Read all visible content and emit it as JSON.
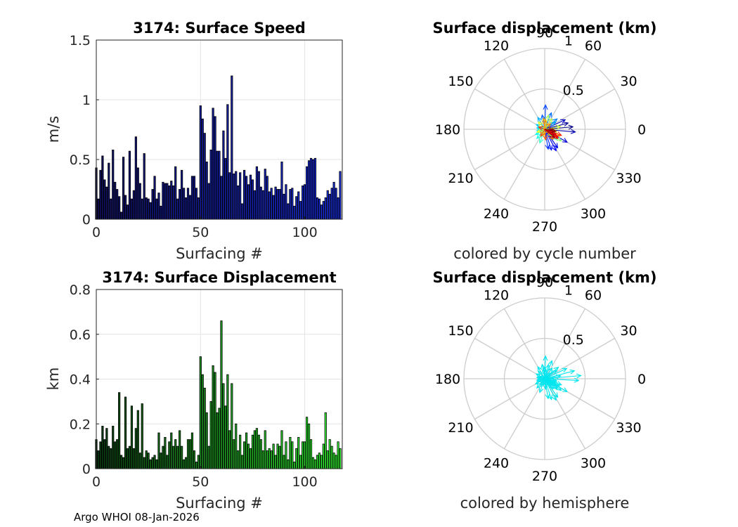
{
  "footer": "Argo WHOI 08-Jan-2026",
  "chart_data": [
    {
      "id": "speed",
      "type": "bar",
      "title": "3174: Surface Speed",
      "xlabel": "Surfacing #",
      "ylabel": "m/s",
      "xlim": [
        0,
        118
      ],
      "ylim": [
        0,
        1.5
      ],
      "xticks": [
        0,
        50,
        100
      ],
      "xtick_labels": [
        "0",
        "50",
        "100"
      ],
      "yticks": [
        0,
        0.5,
        1,
        1.5
      ],
      "ytick_labels": [
        "0",
        "0.5",
        "1",
        "1.5"
      ],
      "grid": true,
      "bar_color_start": "#101060",
      "bar_color_end": "#1a2ee6",
      "values": [
        0.43,
        0.17,
        0.41,
        0.53,
        0.33,
        0.27,
        0.47,
        0.17,
        0.58,
        0.31,
        0.25,
        0.19,
        0.06,
        0.52,
        0.2,
        0.12,
        0.57,
        0.17,
        0.24,
        0.69,
        0.43,
        0.3,
        0.17,
        0.55,
        0.18,
        0.17,
        0.14,
        0.25,
        0.36,
        0.17,
        0.22,
        0.11,
        0.31,
        0.3,
        0.3,
        0.28,
        0.32,
        0.28,
        0.44,
        0.17,
        0.25,
        0.41,
        0.26,
        0.18,
        0.26,
        0.2,
        0.36,
        0.36,
        0.26,
        0.18,
        0.95,
        0.84,
        0.72,
        0.48,
        0.3,
        0.58,
        0.93,
        0.86,
        0.57,
        0.57,
        0.36,
        0.74,
        0.51,
        0.96,
        0.39,
        1.2,
        0.38,
        0.4,
        0.28,
        0.39,
        0.13,
        0.41,
        0.36,
        0.29,
        0.37,
        0.33,
        0.24,
        0.44,
        0.4,
        0.27,
        0.24,
        0.42,
        0.36,
        0.23,
        0.26,
        0.2,
        0.27,
        0.25,
        0.25,
        0.48,
        0.21,
        0.29,
        0.13,
        0.25,
        0.26,
        0.11,
        0.19,
        0.23,
        0.15,
        0.28,
        0.29,
        0.44,
        0.49,
        0.51,
        0.5,
        0.51,
        0.18,
        0.17,
        0.12,
        0.15,
        0.18,
        0.24,
        0.21,
        0.26,
        0.31,
        0.26,
        0.18,
        0.4
      ],
      "caption": ""
    },
    {
      "id": "displacement",
      "type": "bar",
      "title": "3174: Surface Displacement",
      "xlabel": "Surfacing #",
      "ylabel": "km",
      "xlim": [
        0,
        118
      ],
      "ylim": [
        0,
        0.8
      ],
      "xticks": [
        0,
        50,
        100
      ],
      "xtick_labels": [
        "0",
        "50",
        "100"
      ],
      "yticks": [
        0,
        0.2,
        0.4,
        0.6,
        0.8
      ],
      "ytick_labels": [
        "0",
        "0.2",
        "0.4",
        "0.6",
        "0.8"
      ],
      "grid": true,
      "bar_color_start": "#0b3a12",
      "bar_color_end": "#33ff33",
      "values": [
        0.13,
        0.08,
        0.12,
        0.19,
        0.13,
        0.18,
        0.1,
        0.09,
        0.19,
        0.12,
        0.13,
        0.34,
        0.06,
        0.05,
        0.32,
        0.09,
        0.1,
        0.28,
        0.09,
        0.18,
        0.26,
        0.07,
        0.29,
        0.05,
        0.08,
        0.07,
        0.04,
        0.05,
        0.06,
        0.04,
        0.16,
        0.07,
        0.1,
        0.14,
        0.06,
        0.12,
        0.16,
        0.1,
        0.13,
        0.1,
        0.17,
        0.1,
        0.04,
        0.05,
        0.13,
        0.13,
        0.16,
        0.08,
        0.03,
        0.06,
        0.5,
        0.42,
        0.36,
        0.25,
        0.1,
        0.3,
        0.46,
        0.43,
        0.25,
        0.27,
        0.66,
        0.38,
        0.28,
        0.42,
        0.17,
        0.38,
        0.13,
        0.2,
        0.08,
        0.15,
        0.06,
        0.12,
        0.16,
        0.11,
        0.09,
        0.15,
        0.17,
        0.18,
        0.15,
        0.13,
        0.08,
        0.17,
        0.08,
        0.09,
        0.08,
        0.11,
        0.06,
        0.11,
        0.1,
        0.17,
        0.06,
        0.12,
        0.04,
        0.14,
        0.12,
        0.03,
        0.09,
        0.14,
        0.06,
        0.12,
        0.12,
        0.23,
        0.2,
        0.13,
        0.05,
        0.04,
        0.06,
        0.07,
        0.06,
        0.11,
        0.25,
        0.08,
        0.13,
        0.1,
        0.07,
        0.06,
        0.12,
        0.09
      ],
      "caption": ""
    },
    {
      "id": "compass-cycle",
      "type": "compass",
      "title": "Surface displacement (km)",
      "caption": "colored by cycle number",
      "rmax": 1,
      "r_tick_labels": [
        "0.5",
        "1"
      ],
      "r_ticks": [
        0.5,
        1
      ],
      "theta_labels": [
        "0",
        "30",
        "60",
        "90",
        "120",
        "150",
        "180",
        "210",
        "240",
        "270",
        "300",
        "330"
      ],
      "color_mode": "cycle",
      "arrows": [
        {
          "r": 0.35,
          "deg": 5
        },
        {
          "r": 0.3,
          "deg": 15
        },
        {
          "r": 0.38,
          "deg": -5
        },
        {
          "r": 0.28,
          "deg": 25
        },
        {
          "r": 0.32,
          "deg": -30
        },
        {
          "r": 0.28,
          "deg": -55
        },
        {
          "r": 0.3,
          "deg": -62
        },
        {
          "r": 0.27,
          "deg": -72
        },
        {
          "r": 0.25,
          "deg": -80
        },
        {
          "r": 0.3,
          "deg": 88
        },
        {
          "r": 0.18,
          "deg": 100
        },
        {
          "r": 0.22,
          "deg": 68
        },
        {
          "r": 0.2,
          "deg": 40
        },
        {
          "r": 0.16,
          "deg": 35
        },
        {
          "r": 0.17,
          "deg": 120
        },
        {
          "r": 0.12,
          "deg": 150
        },
        {
          "r": 0.1,
          "deg": 170
        },
        {
          "r": 0.1,
          "deg": 190
        },
        {
          "r": 0.13,
          "deg": 210
        },
        {
          "r": 0.15,
          "deg": 230
        },
        {
          "r": 0.18,
          "deg": 250
        },
        {
          "r": 0.14,
          "deg": -15
        },
        {
          "r": 0.2,
          "deg": -40
        },
        {
          "r": 0.12,
          "deg": -45
        },
        {
          "r": 0.25,
          "deg": -35
        },
        {
          "r": 0.18,
          "deg": 75
        },
        {
          "r": 0.16,
          "deg": 55
        },
        {
          "r": 0.2,
          "deg": 10
        },
        {
          "r": 0.12,
          "deg": 130
        },
        {
          "r": 0.1,
          "deg": 200
        },
        {
          "r": 0.08,
          "deg": 260
        },
        {
          "r": 0.15,
          "deg": -10
        },
        {
          "r": 0.2,
          "deg": -25
        },
        {
          "r": 0.14,
          "deg": 95
        },
        {
          "r": 0.12,
          "deg": 85
        },
        {
          "r": 0.1,
          "deg": 45
        },
        {
          "r": 0.16,
          "deg": -50
        },
        {
          "r": 0.13,
          "deg": -85
        },
        {
          "r": 0.1,
          "deg": -120
        },
        {
          "r": 0.08,
          "deg": 160
        },
        {
          "r": 0.22,
          "deg": -20
        },
        {
          "r": 0.18,
          "deg": -30
        },
        {
          "r": 0.2,
          "deg": -35
        },
        {
          "r": 0.15,
          "deg": -25
        },
        {
          "r": 0.12,
          "deg": -15
        },
        {
          "r": 0.1,
          "deg": -5
        },
        {
          "r": 0.16,
          "deg": -40
        },
        {
          "r": 0.14,
          "deg": -10
        }
      ]
    },
    {
      "id": "compass-hemisphere",
      "type": "compass",
      "title": "Surface displacement (km)",
      "caption": "colored by hemisphere",
      "rmax": 1,
      "r_tick_labels": [
        "0.5",
        "1"
      ],
      "r_ticks": [
        0.5,
        1
      ],
      "theta_labels": [
        "0",
        "30",
        "60",
        "90",
        "120",
        "150",
        "180",
        "210",
        "240",
        "270",
        "300",
        "330"
      ],
      "color_mode": "single",
      "arrow_color": "#00e5ee",
      "arrows": [
        {
          "r": 0.45,
          "deg": 5
        },
        {
          "r": 0.38,
          "deg": 15
        },
        {
          "r": 0.42,
          "deg": -3
        },
        {
          "r": 0.3,
          "deg": 25
        },
        {
          "r": 0.32,
          "deg": -30
        },
        {
          "r": 0.28,
          "deg": -55
        },
        {
          "r": 0.3,
          "deg": -62
        },
        {
          "r": 0.27,
          "deg": -72
        },
        {
          "r": 0.25,
          "deg": -80
        },
        {
          "r": 0.28,
          "deg": 88
        },
        {
          "r": 0.18,
          "deg": 100
        },
        {
          "r": 0.24,
          "deg": 68
        },
        {
          "r": 0.22,
          "deg": 40
        },
        {
          "r": 0.18,
          "deg": 35
        },
        {
          "r": 0.17,
          "deg": 120
        },
        {
          "r": 0.12,
          "deg": 150
        },
        {
          "r": 0.1,
          "deg": 170
        },
        {
          "r": 0.1,
          "deg": 190
        },
        {
          "r": 0.13,
          "deg": 210
        },
        {
          "r": 0.15,
          "deg": 230
        },
        {
          "r": 0.18,
          "deg": 250
        },
        {
          "r": 0.14,
          "deg": -15
        },
        {
          "r": 0.2,
          "deg": -40
        },
        {
          "r": 0.12,
          "deg": -45
        },
        {
          "r": 0.25,
          "deg": -35
        },
        {
          "r": 0.18,
          "deg": 75
        },
        {
          "r": 0.16,
          "deg": 55
        },
        {
          "r": 0.2,
          "deg": 10
        },
        {
          "r": 0.12,
          "deg": 130
        },
        {
          "r": 0.1,
          "deg": 200
        },
        {
          "r": 0.08,
          "deg": 260
        },
        {
          "r": 0.15,
          "deg": -10
        },
        {
          "r": 0.2,
          "deg": -25
        },
        {
          "r": 0.14,
          "deg": 95
        },
        {
          "r": 0.12,
          "deg": 85
        },
        {
          "r": 0.1,
          "deg": 45
        },
        {
          "r": 0.16,
          "deg": -50
        },
        {
          "r": 0.13,
          "deg": -85
        },
        {
          "r": 0.1,
          "deg": -120
        },
        {
          "r": 0.08,
          "deg": 160
        },
        {
          "r": 0.22,
          "deg": -20
        },
        {
          "r": 0.18,
          "deg": -30
        },
        {
          "r": 0.2,
          "deg": -35
        },
        {
          "r": 0.15,
          "deg": -25
        }
      ]
    }
  ]
}
